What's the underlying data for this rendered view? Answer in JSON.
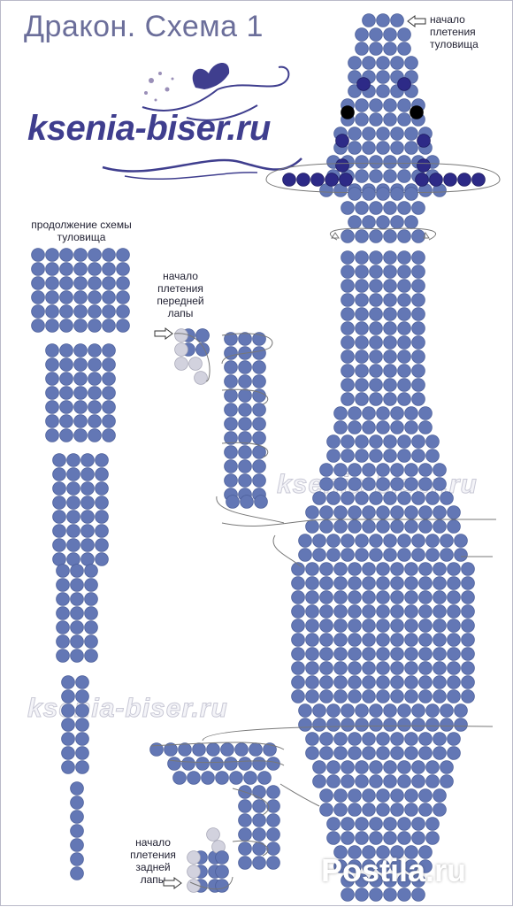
{
  "title": "Дракон. Схема 1",
  "logo": {
    "text": "ksenia-biser.ru"
  },
  "watermarks": [
    "ksenia-biser.ru",
    "ksenia-biser.ru"
  ],
  "labels": {
    "body_start": [
      "начало",
      "плетения",
      "туловища"
    ],
    "body_continuation": [
      "продолжение схемы",
      "туловища"
    ],
    "front_paw_start": [
      "начало",
      "плетения",
      "передней",
      "лапы"
    ],
    "hind_paw_start": [
      "начало",
      "плетения",
      "задней",
      "лапы"
    ]
  },
  "corner_stamp": "Postila.ru",
  "colors": {
    "bead": "#6377b5",
    "bead_stroke": "#4c5f9a",
    "eye_bead": "#000000",
    "dark_bead": "#2d2a87",
    "ghost_bead": "#d2d2de",
    "thread": "#777777",
    "title": "#6b6e9a",
    "logo": "#3f3e8e"
  },
  "icons": [
    "butterfly-icon",
    "arrow-right-icon",
    "arrow-left-icon",
    "arrow-down-icon"
  ]
}
